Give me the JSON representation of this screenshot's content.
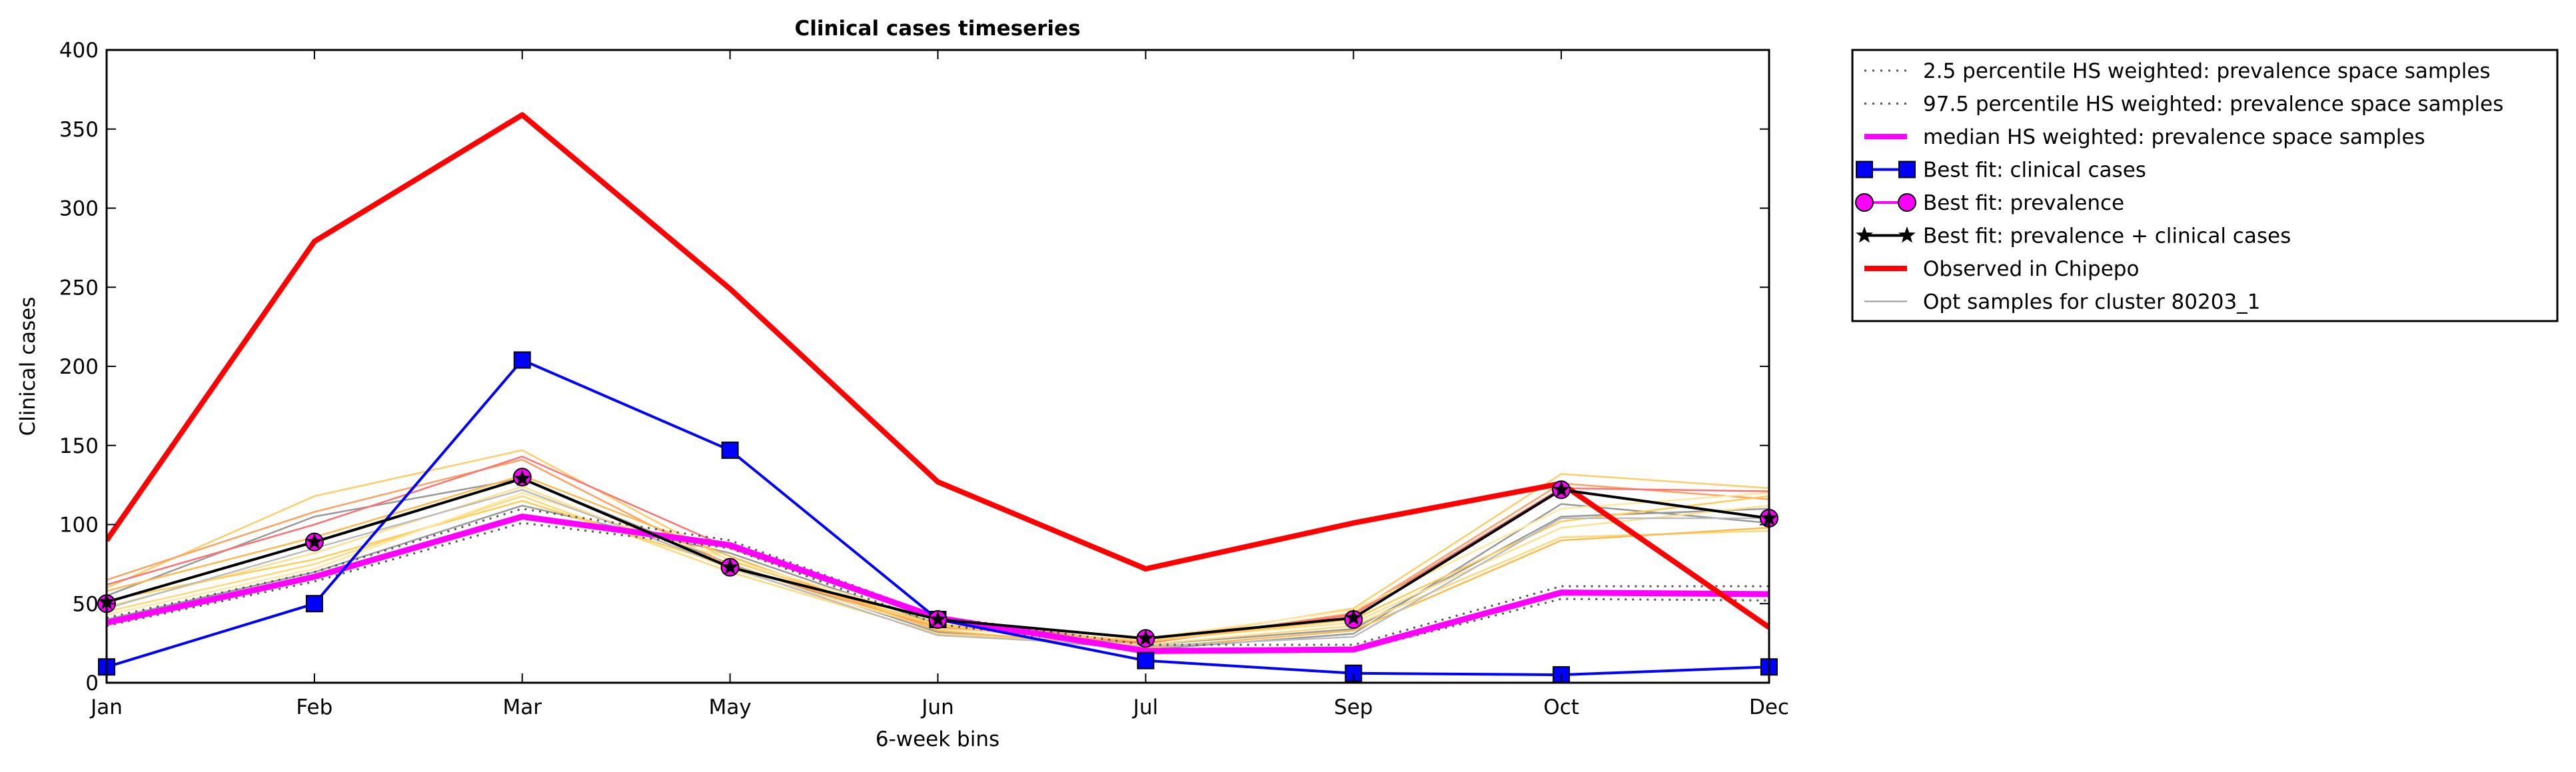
{
  "chart_data": {
    "type": "line",
    "title": "Clinical cases timeseries",
    "xlabel": "6-week bins",
    "ylabel": "Clinical cases",
    "categories": [
      "Jan",
      "Feb",
      "Mar",
      "May",
      "Jun",
      "Jul",
      "Sep",
      "Oct",
      "Dec"
    ],
    "ylim": [
      0,
      400
    ],
    "yticks": [
      0,
      50,
      100,
      150,
      200,
      250,
      300,
      350,
      400
    ],
    "grid": false,
    "legend_position": "outside-top-right",
    "legend": [
      {
        "label": "2.5 percentile HS weighted: prevalence space samples",
        "style": "dotted",
        "color": "#555555",
        "marker": "none"
      },
      {
        "label": "97.5 percentile HS weighted: prevalence space samples",
        "style": "dotted",
        "color": "#555555",
        "marker": "none"
      },
      {
        "label": "median HS weighted: prevalence space samples",
        "style": "solid",
        "color": "#ff00ff",
        "marker": "none"
      },
      {
        "label": "Best fit: clinical cases",
        "style": "solid",
        "color": "#0000ff",
        "marker": "square"
      },
      {
        "label": "Best fit: prevalence",
        "style": "solid",
        "color": "#ff00ff",
        "marker": "circle"
      },
      {
        "label": "Best fit: prevalence + clinical cases",
        "style": "solid",
        "color": "#000000",
        "marker": "star"
      },
      {
        "label": "Observed in Chipepo",
        "style": "solid",
        "color": "#ff0000",
        "marker": "none"
      },
      {
        "label": "Opt samples for cluster 80203_1",
        "style": "solid",
        "color": "#999999",
        "marker": "none"
      }
    ],
    "series": [
      {
        "name": "2.5 percentile HS weighted: prevalence space samples",
        "color": "#555555",
        "values": [
          36,
          64,
          101,
          85,
          37,
          21,
          20,
          53,
          52
        ]
      },
      {
        "name": "97.5 percentile HS weighted: prevalence space samples",
        "color": "#555555",
        "values": [
          41,
          70,
          110,
          90,
          42,
          24,
          24,
          61,
          61
        ]
      },
      {
        "name": "median HS weighted: prevalence space samples",
        "color": "#ff00ff",
        "values": [
          38,
          67,
          105,
          87,
          41,
          20,
          21,
          57,
          56
        ]
      },
      {
        "name": "Best fit: clinical cases",
        "color": "#0000ff",
        "values": [
          10,
          50,
          204,
          147,
          40,
          14,
          6,
          5,
          10
        ]
      },
      {
        "name": "Best fit: prevalence",
        "color": "#ff00ff",
        "values": [
          50,
          89,
          130,
          73,
          40,
          28,
          40,
          122,
          104
        ]
      },
      {
        "name": "Best fit: prevalence + clinical cases",
        "color": "#000000",
        "values": [
          51,
          89,
          129,
          73,
          40,
          28,
          41,
          122,
          104
        ]
      },
      {
        "name": "Observed in Chipepo",
        "color": "#ff0000",
        "values": [
          90,
          279,
          359,
          249,
          127,
          72,
          101,
          126,
          35
        ]
      }
    ],
    "sample_series": [
      {
        "color": "#999999",
        "values": [
          40,
          70,
          112,
          82,
          37,
          24,
          34,
          105,
          110
        ]
      },
      {
        "color": "#999999",
        "values": [
          55,
          105,
          129,
          75,
          32,
          21,
          31,
          113,
          101
        ]
      },
      {
        "color": "#ffcc66",
        "values": [
          60,
          118,
          147,
          77,
          36,
          26,
          47,
          132,
          123
        ]
      },
      {
        "color": "#ffa060",
        "values": [
          65,
          108,
          141,
          74,
          35,
          25,
          44,
          126,
          116
        ]
      },
      {
        "color": "#ff7070",
        "values": [
          62,
          100,
          143,
          85,
          40,
          25,
          43,
          123,
          121
        ]
      },
      {
        "color": "#ffd878",
        "values": [
          45,
          75,
          118,
          70,
          31,
          24,
          36,
          92,
          96
        ]
      },
      {
        "color": "#ffe090",
        "values": [
          48,
          82,
          124,
          72,
          34,
          27,
          38,
          98,
          112
        ]
      },
      {
        "color": "#ffcc55",
        "values": [
          52,
          78,
          115,
          74,
          37,
          26,
          40,
          102,
          118
        ]
      },
      {
        "color": "#ffb84d",
        "values": [
          58,
          92,
          131,
          80,
          33,
          22,
          33,
          90,
          98
        ]
      },
      {
        "color": "#ffe8a0",
        "values": [
          43,
          72,
          120,
          78,
          39,
          28,
          46,
          110,
          120
        ]
      },
      {
        "color": "#bbbbbb",
        "values": [
          47,
          85,
          122,
          73,
          30,
          23,
          29,
          104,
          104
        ]
      }
    ]
  }
}
